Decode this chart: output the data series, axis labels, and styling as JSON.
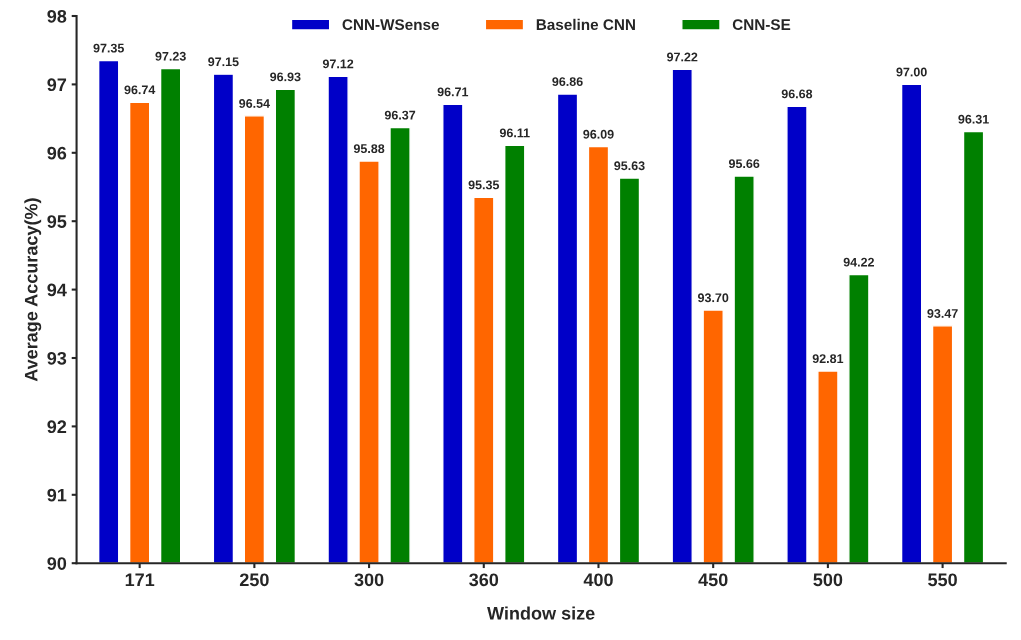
{
  "chart_data": {
    "type": "bar",
    "xlabel": "Window size",
    "ylabel": "Average Accuracy(%)",
    "categories": [
      "171",
      "250",
      "300",
      "360",
      "400",
      "450",
      "500",
      "550"
    ],
    "series": [
      {
        "name": "CNN-WSense",
        "color": "#0000c8",
        "values": [
          97.35,
          97.15,
          97.12,
          96.71,
          96.86,
          97.22,
          96.68,
          97.0
        ],
        "value_labels": [
          "97.35",
          "97.15",
          "97.12",
          "96.71",
          "96.86",
          "97.22",
          "96.68",
          "97.00"
        ]
      },
      {
        "name": "Baseline CNN",
        "color": "#ff6600",
        "values": [
          96.74,
          96.54,
          95.88,
          95.35,
          96.09,
          93.7,
          92.81,
          93.47
        ],
        "value_labels": [
          "96.74",
          "96.54",
          "95.88",
          "95.35",
          "96.09",
          "93.70",
          "92.81",
          "93.47"
        ]
      },
      {
        "name": "CNN-SE",
        "color": "#008000",
        "values": [
          97.23,
          96.93,
          96.37,
          96.11,
          95.63,
          95.66,
          94.22,
          96.31
        ],
        "value_labels": [
          "97.23",
          "96.93",
          "96.37",
          "96.11",
          "95.63",
          "95.66",
          "94.22",
          "96.31"
        ]
      }
    ],
    "ylim": [
      90,
      98
    ],
    "yticks": [
      90,
      91,
      92,
      93,
      94,
      95,
      96,
      97,
      98
    ],
    "legend": "top",
    "grid": false
  }
}
